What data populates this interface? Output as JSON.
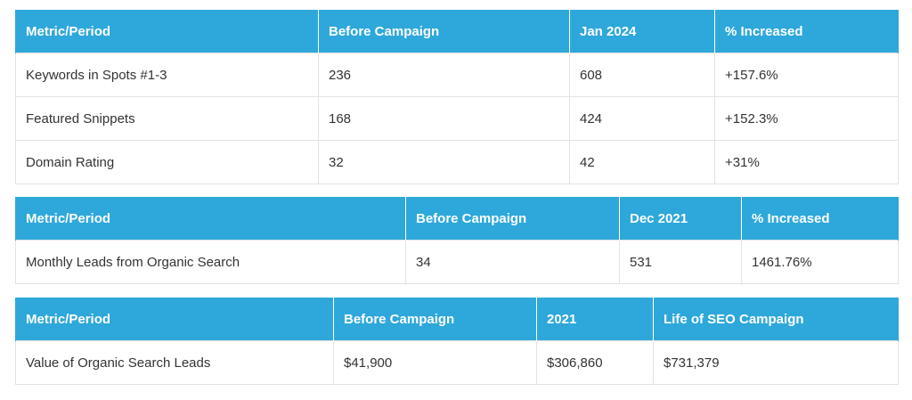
{
  "tables": [
    {
      "headers": [
        "Metric/Period",
        "Before Campaign",
        "Jan 2024",
        "% Increased"
      ],
      "rows": [
        [
          "Keywords in Spots #1-3",
          "236",
          "608",
          "+157.6%"
        ],
        [
          "Featured Snippets",
          "168",
          "424",
          "+152.3%"
        ],
        [
          "Domain Rating",
          "32",
          "42",
          "+31%"
        ]
      ]
    },
    {
      "headers": [
        "Metric/Period",
        "Before Campaign",
        "Dec 2021",
        "% Increased"
      ],
      "rows": [
        [
          "Monthly Leads from Organic Search",
          "34",
          "531",
          "1461.76%"
        ]
      ]
    },
    {
      "headers": [
        "Metric/Period",
        "Before Campaign",
        "2021",
        "Life of SEO Campaign"
      ],
      "rows": [
        [
          "Value of Organic Search Leads",
          "$41,900",
          "$306,860",
          "$731,379"
        ]
      ]
    }
  ],
  "colors": {
    "header_background": "#2ea8db",
    "header_text": "#ffffff",
    "cell_text": "#333333",
    "cell_border": "#e3e3e3"
  }
}
